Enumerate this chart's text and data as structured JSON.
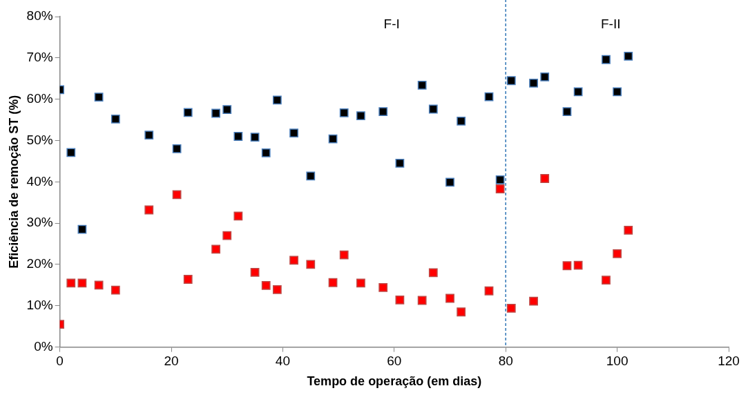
{
  "chart_data": {
    "type": "scatter",
    "xlabel": "Tempo de operação (em dias)",
    "ylabel": "Eficiência de remoção ST (%)",
    "xlim": [
      0,
      120
    ],
    "xticks": [
      0,
      20,
      40,
      60,
      80,
      100,
      120
    ],
    "ylim": [
      0,
      80
    ],
    "yticks": [
      {
        "value": 0,
        "label": "0%"
      },
      {
        "value": 10,
        "label": "10%"
      },
      {
        "value": 20,
        "label": "20%"
      },
      {
        "value": 30,
        "label": "30%"
      },
      {
        "value": 40,
        "label": "40%"
      },
      {
        "value": 50,
        "label": "50%"
      },
      {
        "value": 60,
        "label": "60%"
      },
      {
        "value": 70,
        "label": "70%"
      },
      {
        "value": 80,
        "label": "80%"
      }
    ],
    "grid": false,
    "legend": false,
    "marker": "square",
    "ref_lines": [
      {
        "axis": "x",
        "value": 80,
        "color": "#2e75b6",
        "line_style": "dashed"
      }
    ],
    "annotations": [
      "F-I",
      "F-II"
    ],
    "series": [
      {
        "color": "#000000",
        "x": [
          0,
          2,
          4,
          7,
          10,
          16,
          21,
          23,
          28,
          30,
          32,
          35,
          37,
          39,
          42,
          45,
          49,
          51,
          54,
          58,
          61,
          65,
          67,
          70,
          72,
          77,
          79,
          81,
          85,
          87,
          91,
          93,
          98,
          100,
          102
        ],
        "values": [
          62.3,
          47.1,
          28.5,
          60.5,
          55.2,
          51.3,
          48,
          56.8,
          56.6,
          57.5,
          51,
          50.8,
          47,
          59.8,
          51.8,
          41.4,
          50.4,
          56.7,
          56,
          57,
          44.5,
          63.4,
          57.6,
          39.9,
          54.7,
          60.6,
          40.5,
          64.5,
          63.9,
          65.4,
          57,
          61.8,
          69.6,
          61.8,
          70.4
        ]
      },
      {
        "color": "#ff0000",
        "x": [
          0,
          2,
          4,
          7,
          10,
          16,
          21,
          23,
          28,
          30,
          32,
          35,
          37,
          39,
          42,
          45,
          49,
          51,
          54,
          58,
          61,
          65,
          67,
          70,
          72,
          77,
          79,
          81,
          85,
          87,
          91,
          93,
          98,
          100,
          102
        ],
        "values": [
          5.5,
          15.5,
          15.5,
          15,
          13.8,
          33.2,
          36.9,
          16.4,
          23.7,
          27,
          31.7,
          18.1,
          14.9,
          13.9,
          21,
          20,
          15.6,
          22.3,
          15.5,
          14.4,
          11.4,
          11.3,
          18,
          11.8,
          8.5,
          13.6,
          38.3,
          9.4,
          11.1,
          40.8,
          19.7,
          19.8,
          16.2,
          22.6,
          28.3
        ]
      }
    ]
  }
}
